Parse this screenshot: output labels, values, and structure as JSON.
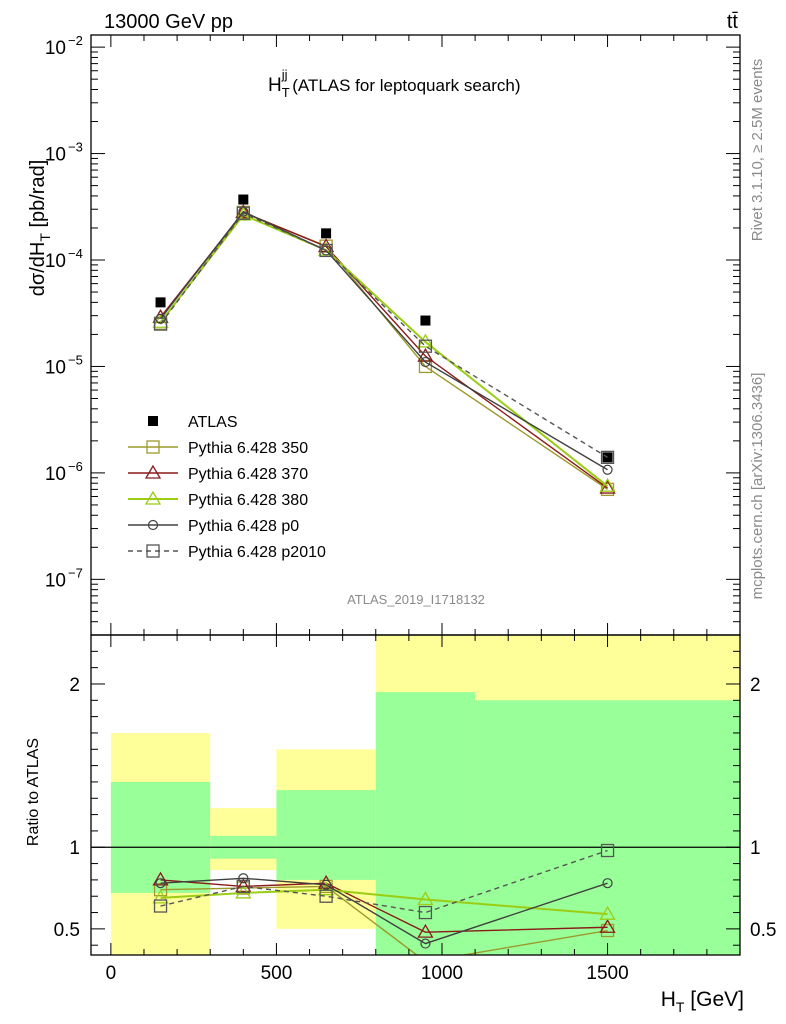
{
  "header": {
    "left_label": "13000 GeV pp",
    "right_label": "tt̄"
  },
  "side_labels": {
    "rivet": "Rivet 3.1.10, ≥ 2.5M events",
    "mcplots": "mcplots.cern.ch [arXiv:1306.3436]"
  },
  "watermark": "ATLAS_2019_I1718132",
  "chart_data": [
    {
      "type": "line",
      "title_main": "H",
      "title_sub": "T",
      "title_sup": "jj",
      "title_rest": " (ATLAS for leptoquark search)",
      "ylabel_main": "dσ/dH",
      "ylabel_sub": "T",
      "ylabel_rest": " [pb/rad]",
      "yscale": "log",
      "ylim": [
        3e-08,
        0.013
      ],
      "xlim": [
        -60,
        1900
      ],
      "ytick_labels": [
        {
          "value": 1e-07,
          "base": "10",
          "exp": "−7"
        },
        {
          "value": 1e-06,
          "base": "10",
          "exp": "−6"
        },
        {
          "value": 1e-05,
          "base": "10",
          "exp": "−5"
        },
        {
          "value": 0.0001,
          "base": "10",
          "exp": "−4"
        },
        {
          "value": 0.001,
          "base": "10",
          "exp": "−3"
        },
        {
          "value": 0.01,
          "base": "10",
          "exp": "−2"
        }
      ],
      "legend_position": "bottom-left",
      "x": [
        150,
        400,
        650,
        950,
        1500
      ],
      "series": [
        {
          "name": "ATLAS",
          "color": "#000000",
          "marker": "filled-square",
          "line": "none",
          "values": [
            4e-05,
            0.00037,
            0.000178,
            2.7e-05,
            1.4e-06
          ]
        },
        {
          "name": "Pythia 6.428 350",
          "color": "#9c9a2c",
          "marker": "open-square",
          "line": "solid",
          "values": [
            2.55e-05,
            0.00028,
            0.000135,
            1e-05,
            7e-07
          ]
        },
        {
          "name": "Pythia 6.428 370",
          "color": "#8b1a1a",
          "marker": "open-triangle",
          "line": "solid",
          "values": [
            2.9e-05,
            0.00028,
            0.000134,
            1.25e-05,
            7.2e-07
          ]
        },
        {
          "name": "Pythia 6.428 380",
          "color": "#9acd14",
          "marker": "open-triangle",
          "line": "solid",
          "values": [
            2.6e-05,
            0.000265,
            0.000124,
            1.7e-05,
            7.5e-07
          ]
        },
        {
          "name": "Pythia 6.428 p0",
          "color": "#404040",
          "marker": "open-circle",
          "line": "solid",
          "values": [
            2.8e-05,
            0.000285,
            0.000123,
            1.1e-05,
            1.07e-06
          ]
        },
        {
          "name": "Pythia 6.428 p2010",
          "color": "#555555",
          "marker": "open-square",
          "line": "dashed",
          "values": [
            2.5e-05,
            0.000275,
            0.000123,
            1.55e-05,
            1.4e-06
          ]
        }
      ]
    },
    {
      "type": "line",
      "ylabel": "Ratio to ATLAS",
      "xlabel_main": "H",
      "xlabel_sub": "T",
      "xlabel_rest": " [GeV]",
      "xlim": [
        -60,
        1900
      ],
      "ylim": [
        0.34,
        2.3
      ],
      "xtick_labels": [
        {
          "value": 0,
          "label": "0"
        },
        {
          "value": 500,
          "label": "500"
        },
        {
          "value": 1000,
          "label": "1000"
        },
        {
          "value": 1500,
          "label": "1500"
        }
      ],
      "ytick_labels": [
        {
          "value": 0.5,
          "label": "0.5"
        },
        {
          "value": 1,
          "label": "1"
        },
        {
          "value": 2,
          "label": "2"
        }
      ],
      "uncertainty_bands": [
        {
          "x0": 0,
          "x1": 300,
          "green": [
            0.72,
            1.4
          ],
          "yellow": [
            0.34,
            1.7
          ]
        },
        {
          "x0": 300,
          "x1": 500,
          "green": [
            0.93,
            1.07
          ],
          "yellow": [
            0.86,
            1.24
          ]
        },
        {
          "x0": 500,
          "x1": 800,
          "green": [
            0.8,
            1.35
          ],
          "yellow": [
            0.5,
            1.6
          ]
        },
        {
          "x0": 800,
          "x1": 1100,
          "green": [
            0.34,
            1.95
          ],
          "yellow": [
            0.34,
            2.3
          ]
        },
        {
          "x0": 1100,
          "x1": 1900,
          "green": [
            0.34,
            1.9
          ],
          "yellow": [
            0.34,
            2.3
          ]
        }
      ],
      "band_colors": {
        "green": "#99ff99",
        "yellow": "#ffff99"
      },
      "reference_line": 1,
      "x": [
        150,
        400,
        650,
        950,
        1500
      ],
      "series": [
        {
          "name": "Pythia 6.428 350",
          "color": "#9c9a2c",
          "marker": "open-square",
          "line": "solid",
          "values": [
            0.74,
            0.75,
            0.76,
            0.3,
            0.49
          ]
        },
        {
          "name": "Pythia 6.428 370",
          "color": "#8b1a1a",
          "marker": "open-triangle",
          "line": "solid",
          "values": [
            0.8,
            0.76,
            0.78,
            0.48,
            0.51
          ]
        },
        {
          "name": "Pythia 6.428 380",
          "color": "#9acd14",
          "marker": "open-triangle",
          "line": "solid",
          "values": [
            0.69,
            0.72,
            0.74,
            0.68,
            0.59
          ]
        },
        {
          "name": "Pythia 6.428 p0",
          "color": "#404040",
          "marker": "open-circle",
          "line": "solid",
          "values": [
            0.78,
            0.81,
            0.77,
            0.41,
            0.78
          ]
        },
        {
          "name": "Pythia 6.428 p2010",
          "color": "#555555",
          "marker": "open-square",
          "line": "dashed",
          "values": [
            0.64,
            0.76,
            0.7,
            0.6,
            0.98
          ]
        }
      ]
    }
  ]
}
